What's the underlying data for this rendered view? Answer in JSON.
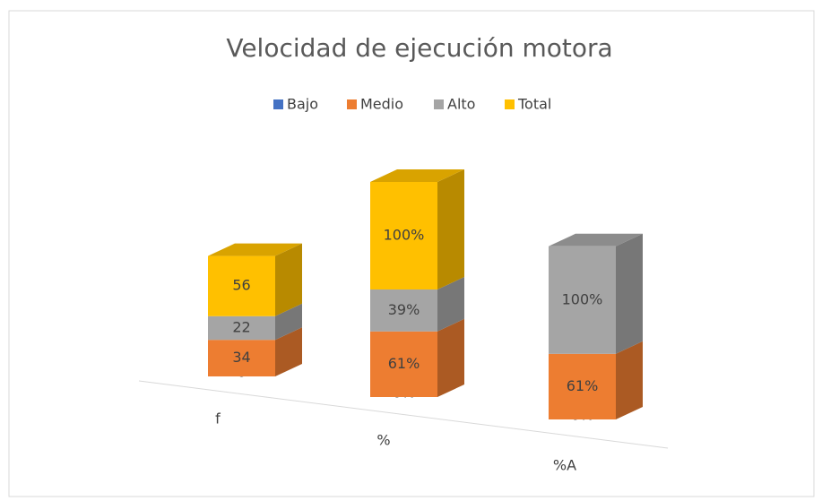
{
  "chart_data": {
    "type": "bar3d_stacked",
    "title": "Velocidad de ejecución motora",
    "categories": [
      "f",
      "%",
      "%A"
    ],
    "series": [
      {
        "name": "Bajo",
        "color": "#4472c4",
        "values": [
          0,
          0,
          0
        ],
        "value_labels": [
          "0",
          "0%",
          "0%"
        ]
      },
      {
        "name": "Medio",
        "color": "#ed7d31",
        "values": [
          34,
          61,
          61
        ],
        "value_labels": [
          "34",
          "61%",
          "61%"
        ]
      },
      {
        "name": "Alto",
        "color": "#a5a5a5",
        "values": [
          22,
          39,
          100
        ],
        "value_labels": [
          "22",
          "39%",
          "100%"
        ]
      },
      {
        "name": "Total",
        "color": "#ffc000",
        "values": [
          56,
          100,
          null
        ],
        "value_labels": [
          "56",
          "100%",
          null
        ]
      }
    ],
    "legend": "top"
  }
}
